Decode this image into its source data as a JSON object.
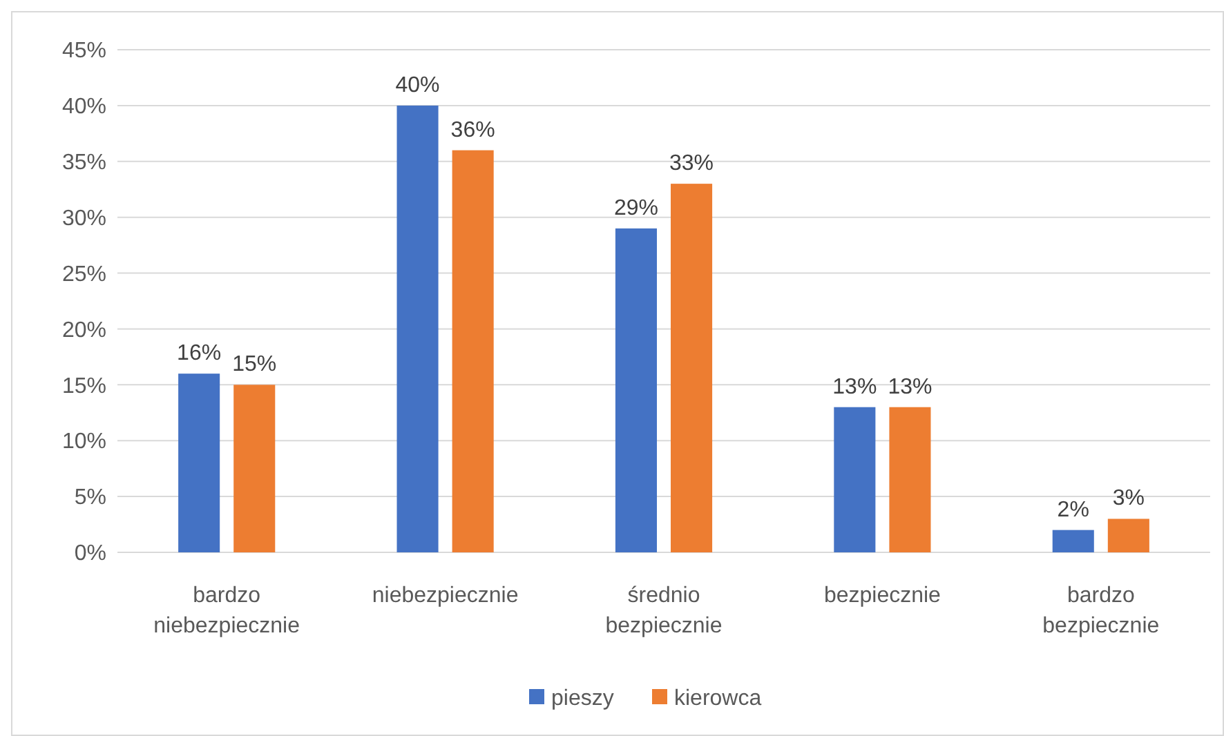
{
  "chart_data": {
    "type": "bar",
    "categories": [
      "bardzo niebezpiecznie",
      "niebezpiecznie",
      "średnio bezpiecznie",
      "bezpiecznie",
      "bardzo bezpiecznie"
    ],
    "series": [
      {
        "name": "pieszy",
        "color": "#4472c4",
        "values": [
          16,
          40,
          29,
          13,
          2
        ],
        "value_labels": [
          "16%",
          "40%",
          "29%",
          "13%",
          "2%"
        ]
      },
      {
        "name": "kierowca",
        "color": "#ed7d31",
        "values": [
          15,
          36,
          33,
          13,
          3
        ],
        "value_labels": [
          "15%",
          "36%",
          "33%",
          "13%",
          "3%"
        ]
      }
    ],
    "ylim": [
      0,
      45
    ],
    "yticks": [
      {
        "value": 0,
        "label": "0%"
      },
      {
        "value": 5,
        "label": "5%"
      },
      {
        "value": 10,
        "label": "10%"
      },
      {
        "value": 15,
        "label": "15%"
      },
      {
        "value": 20,
        "label": "20%"
      },
      {
        "value": 25,
        "label": "25%"
      },
      {
        "value": 30,
        "label": "30%"
      },
      {
        "value": 35,
        "label": "35%"
      },
      {
        "value": 40,
        "label": "40%"
      },
      {
        "value": 45,
        "label": "45%"
      }
    ],
    "grid": "y",
    "legend": "bottom"
  }
}
